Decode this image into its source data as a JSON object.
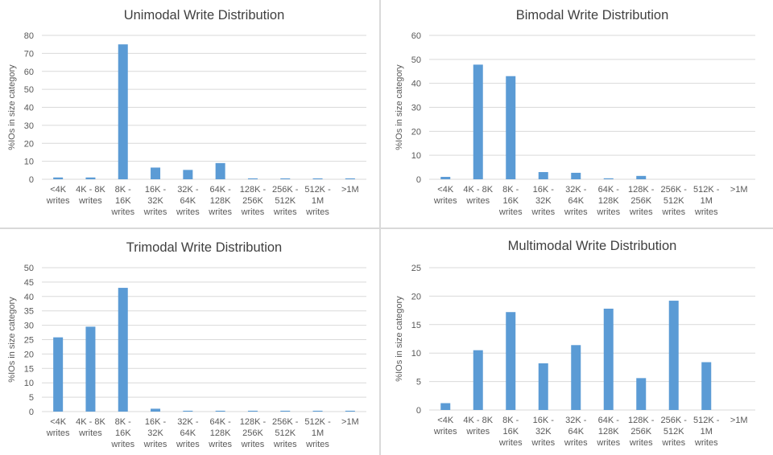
{
  "colors": {
    "bar": "#5b9bd5",
    "grid": "#d9d9d9",
    "text": "#595959",
    "title": "#404040",
    "panel_border": "#d9d9d9"
  },
  "chart_data": [
    {
      "type": "bar",
      "title": "Unimodal Write Distribution",
      "ylabel": "%IOs in size category",
      "xlabel": "",
      "ylim": [
        0,
        80
      ],
      "yticks": [
        0,
        10,
        20,
        30,
        40,
        50,
        60,
        70,
        80
      ],
      "grid": true,
      "categories": [
        [
          "<4K",
          "writes"
        ],
        [
          "4K - 8K",
          "writes"
        ],
        [
          "8K -",
          "16K",
          "writes"
        ],
        [
          "16K -",
          "32K",
          "writes"
        ],
        [
          "32K -",
          "64K",
          "writes"
        ],
        [
          "64K -",
          "128K",
          "writes"
        ],
        [
          "128K -",
          "256K",
          "writes"
        ],
        [
          "256K -",
          "512K",
          "writes"
        ],
        [
          "512K -",
          "1M",
          "writes"
        ],
        [
          ">1M"
        ]
      ],
      "values": [
        1,
        1,
        75,
        6.5,
        5.2,
        9,
        0.5,
        0.5,
        0.5,
        0.5
      ]
    },
    {
      "type": "bar",
      "title": "Bimodal Write Distribution",
      "ylabel": "%IOs in size category",
      "xlabel": "",
      "ylim": [
        0,
        60
      ],
      "yticks": [
        0,
        10,
        20,
        30,
        40,
        50,
        60
      ],
      "grid": true,
      "categories": [
        [
          "<4K",
          "writes"
        ],
        [
          "4K - 8K",
          "writes"
        ],
        [
          "8K -",
          "16K",
          "writes"
        ],
        [
          "16K -",
          "32K",
          "writes"
        ],
        [
          "32K -",
          "64K",
          "writes"
        ],
        [
          "64K -",
          "128K",
          "writes"
        ],
        [
          "128K -",
          "256K",
          "writes"
        ],
        [
          "256K -",
          "512K",
          "writes"
        ],
        [
          "512K -",
          "1M",
          "writes"
        ],
        [
          ">1M"
        ]
      ],
      "values": [
        1,
        47.8,
        43,
        3,
        2.7,
        0.4,
        1.4,
        0,
        0,
        0
      ]
    },
    {
      "type": "bar",
      "title": "Trimodal Write Distribution",
      "ylabel": "%IOs in size category",
      "xlabel": "",
      "ylim": [
        0,
        50
      ],
      "yticks": [
        0,
        5,
        10,
        15,
        20,
        25,
        30,
        35,
        40,
        45,
        50
      ],
      "grid": true,
      "categories": [
        [
          "<4K",
          "writes"
        ],
        [
          "4K - 8K",
          "writes"
        ],
        [
          "8K -",
          "16K",
          "writes"
        ],
        [
          "16K -",
          "32K",
          "writes"
        ],
        [
          "32K -",
          "64K",
          "writes"
        ],
        [
          "64K -",
          "128K",
          "writes"
        ],
        [
          "128K -",
          "256K",
          "writes"
        ],
        [
          "256K -",
          "512K",
          "writes"
        ],
        [
          "512K -",
          "1M",
          "writes"
        ],
        [
          ">1M"
        ]
      ],
      "values": [
        25.8,
        29.5,
        43,
        1,
        0.3,
        0.3,
        0.3,
        0.3,
        0.3,
        0.3
      ]
    },
    {
      "type": "bar",
      "title": "Multimodal Write Distribution",
      "ylabel": "%IOs in size category",
      "xlabel": "",
      "ylim": [
        0,
        25
      ],
      "yticks": [
        0,
        5,
        10,
        15,
        20,
        25
      ],
      "grid": true,
      "categories": [
        [
          "<4K",
          "writes"
        ],
        [
          "4K - 8K",
          "writes"
        ],
        [
          "8K -",
          "16K",
          "writes"
        ],
        [
          "16K -",
          "32K",
          "writes"
        ],
        [
          "32K -",
          "64K",
          "writes"
        ],
        [
          "64K -",
          "128K",
          "writes"
        ],
        [
          "128K -",
          "256K",
          "writes"
        ],
        [
          "256K -",
          "512K",
          "writes"
        ],
        [
          "512K -",
          "1M",
          "writes"
        ],
        [
          ">1M"
        ]
      ],
      "values": [
        1.2,
        10.5,
        17.2,
        8.2,
        11.4,
        17.8,
        5.6,
        19.2,
        8.4,
        0
      ]
    }
  ]
}
